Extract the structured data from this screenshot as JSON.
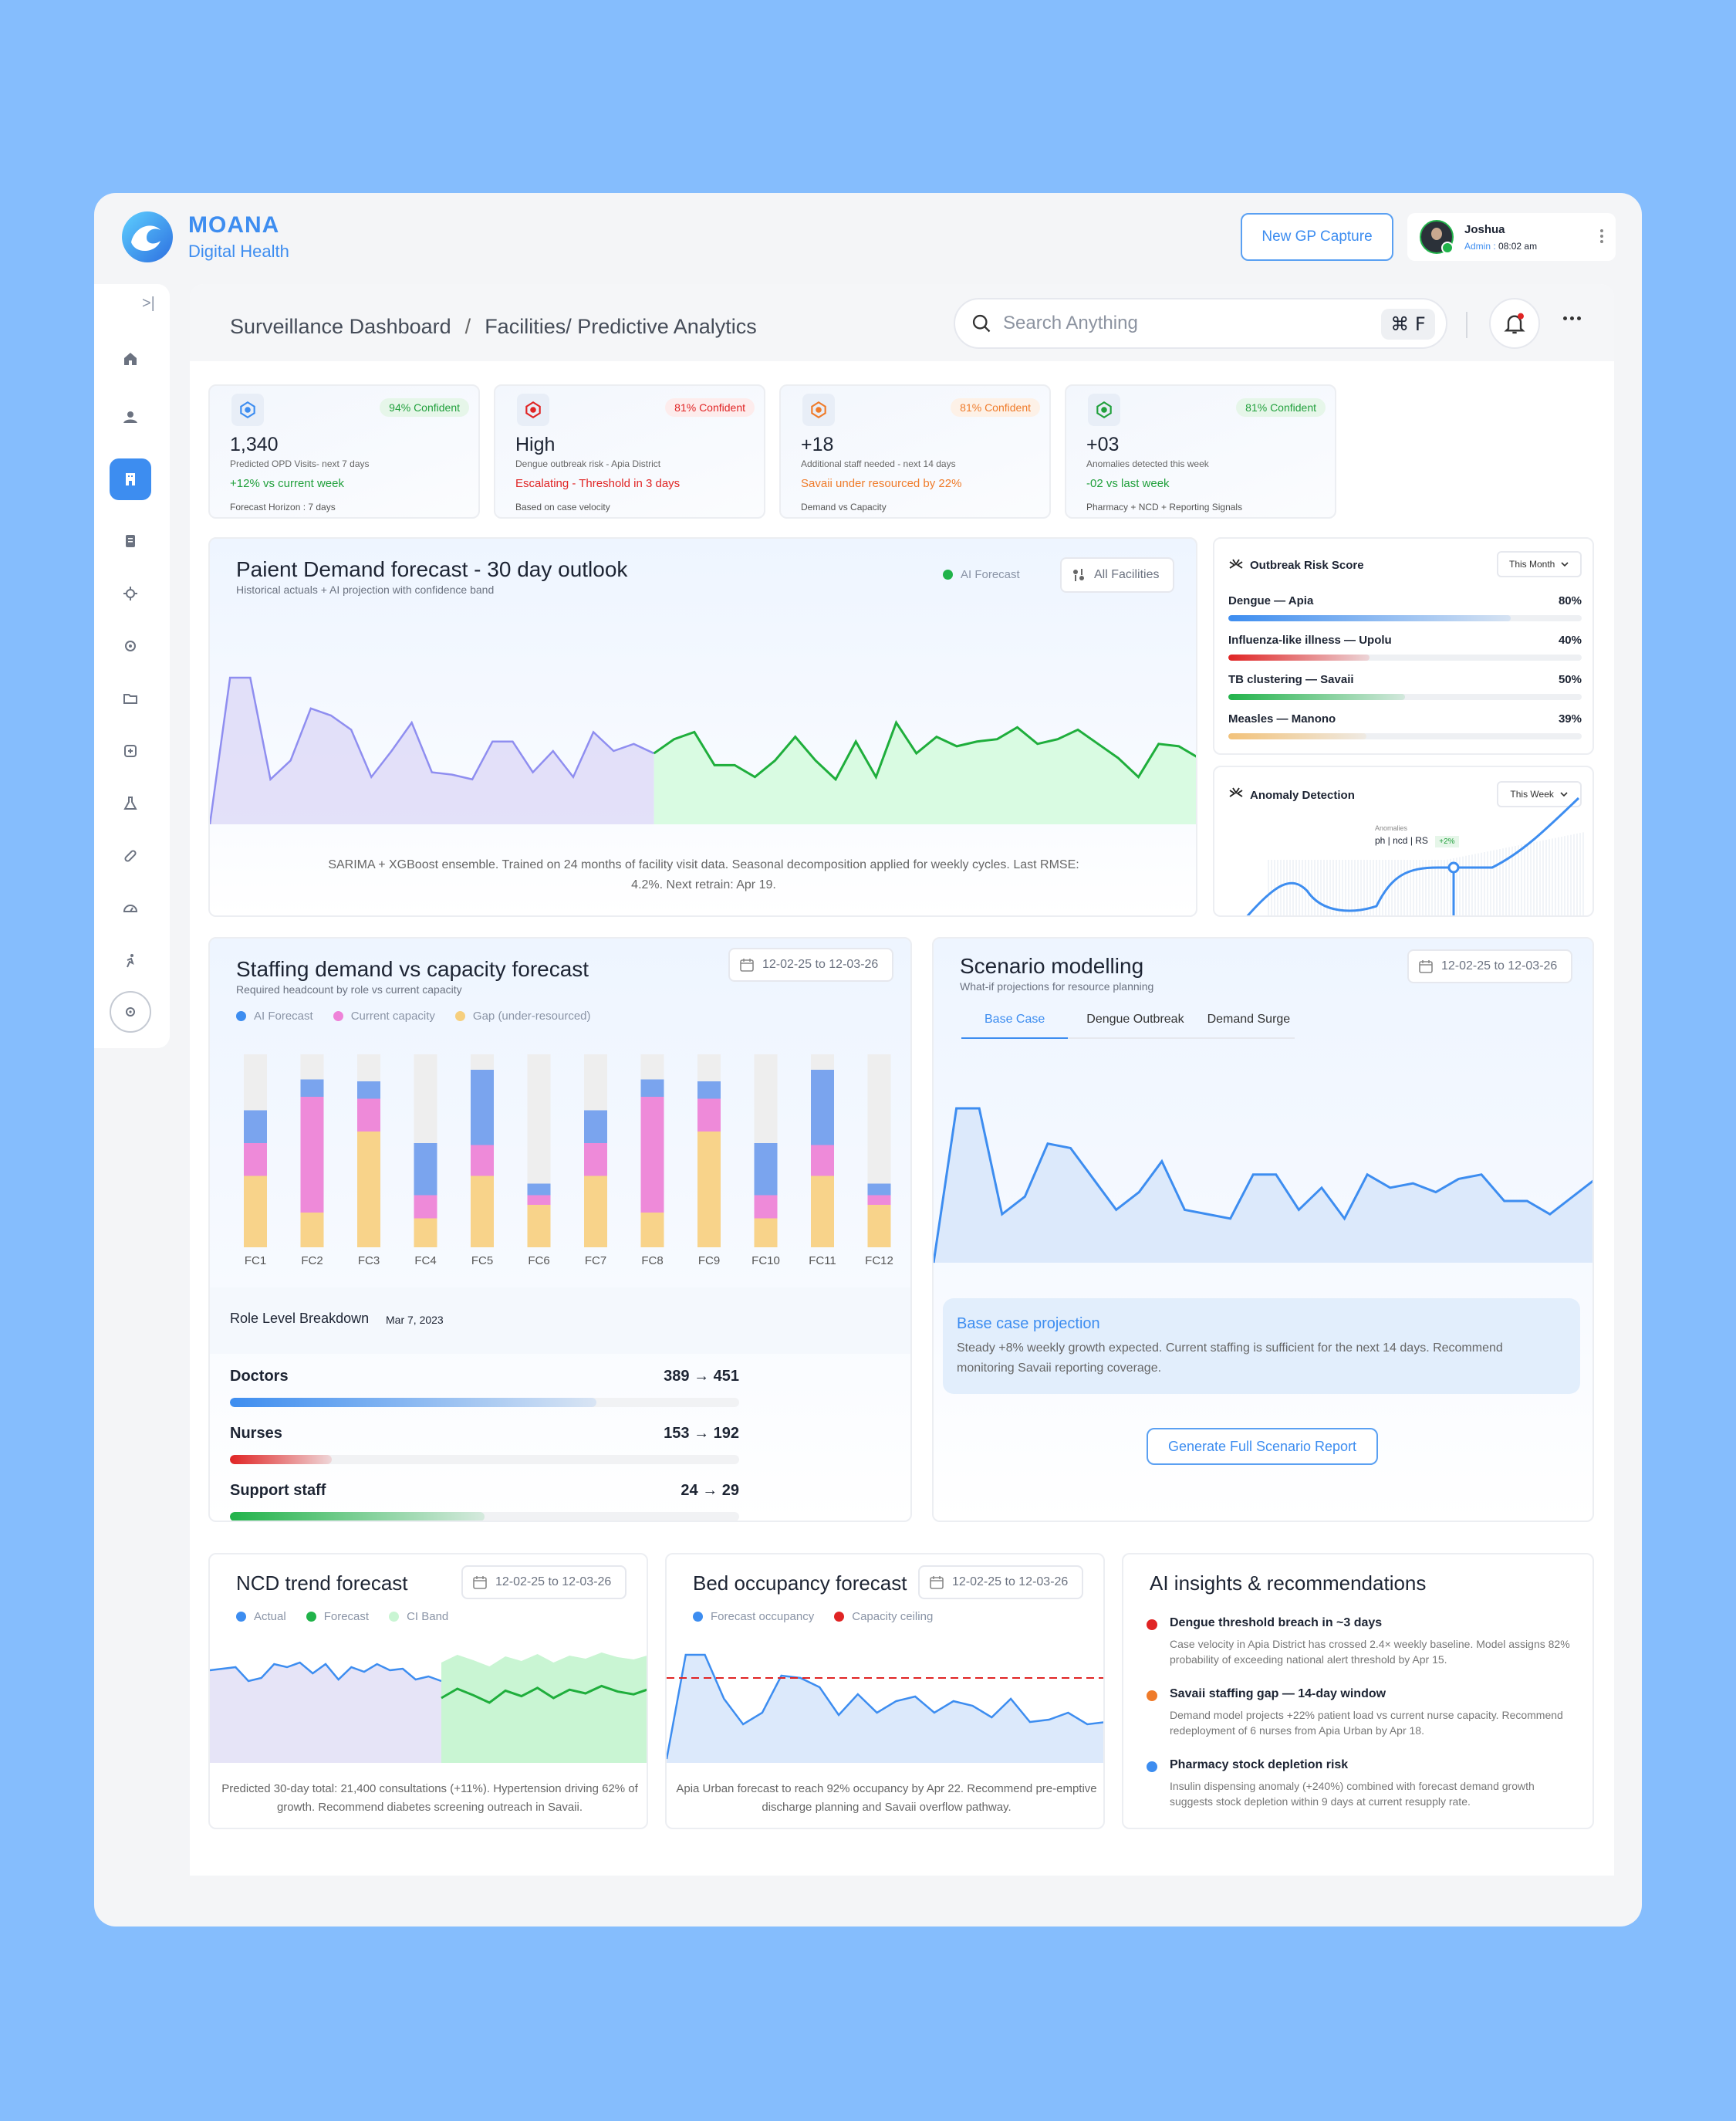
{
  "brand": {
    "name": "MOANA",
    "sub": "Digital Health"
  },
  "header": {
    "gp_button": "New GP Capture",
    "user_name": "Joshua",
    "user_role": "Admin",
    "user_time": "08:02 am"
  },
  "breadcrumb": {
    "root": "Surveillance Dashboard",
    "sep": "/",
    "current": "Facilities/ Predictive Analytics"
  },
  "search": {
    "placeholder": "Search Anything",
    "shortcut": "⌘ F"
  },
  "sidebar": {
    "icons": [
      "collapse-icon",
      "home-icon",
      "users-icon",
      "building-icon",
      "document-icon",
      "virus-icon",
      "settings-icon",
      "folder-icon",
      "medical-icon",
      "flask-icon",
      "pill-icon",
      "gauge-icon",
      "activity-icon",
      "gear-icon"
    ]
  },
  "kpis": [
    {
      "icon": "building-icon",
      "confidence": "94% Confident",
      "value": "1,340",
      "sub": "Predicted OPD Visits- next 7 days",
      "trend": "+12% vs current week",
      "foot": "Forecast Horizon : 7 days",
      "color": "#3d8df0",
      "trend_color": "#21a03c",
      "conf_bg": "#e6f6e9",
      "conf_color": "#21a03c"
    },
    {
      "icon": "building-icon",
      "confidence": "81% Confident",
      "value": "High",
      "sub": "Dengue outbreak risk - Apia District",
      "trend": "Escalating - Threshold in 3 days",
      "foot": "Based on case velocity",
      "color": "#e02424",
      "trend_color": "#e02424",
      "conf_bg": "#fdecec",
      "conf_color": "#e02424"
    },
    {
      "icon": "building-icon",
      "confidence": "81% Confident",
      "value": "+18",
      "sub": "Additional staff needed - next 14 days",
      "trend": "Savaii under resourced by 22%",
      "foot": "Demand vs Capacity",
      "color": "#ef7b2a",
      "trend_color": "#ef7b2a",
      "conf_bg": "#fdf1e7",
      "conf_color": "#ef7b2a"
    },
    {
      "icon": "building-icon",
      "confidence": "81% Confident",
      "value": "+03",
      "sub": "Anomalies detected this week",
      "trend": "-02 vs last week",
      "foot": "Pharmacy + NCD + Reporting Signals",
      "color": "#21a03c",
      "trend_color": "#21a03c",
      "conf_bg": "#e6f6e9",
      "conf_color": "#21a03c"
    }
  ],
  "demand": {
    "title": "Paient Demand forecast - 30 day outlook",
    "subtitle": "Historical actuals + AI projection with confidence band",
    "legend_ai": "AI Forecast",
    "filter": "All Facilities",
    "note": "SARIMA + XGBoost ensemble. Trained on 24 months of facility visit data. Seasonal decomposition applied for weekly cycles. Last RMSE: 4.2%. Next retrain: Apr 19."
  },
  "risk": {
    "title": "Outbreak Risk Score",
    "period": "This Month",
    "items": [
      {
        "label": "Dengue — Apia",
        "pct": "80%",
        "value": 80,
        "color": "#3d8df0"
      },
      {
        "label": "Influenza-like illness — Upolu",
        "pct": "40%",
        "value": 40,
        "color": "#e02424"
      },
      {
        "label": "TB clustering — Savaii",
        "pct": "50%",
        "value": 50,
        "color": "#21b34a"
      },
      {
        "label": "Measles — Manono",
        "pct": "39%",
        "value": 39,
        "color": "#f2c27a"
      }
    ]
  },
  "anomaly": {
    "title": "Anomaly Detection",
    "period": "This Week",
    "tip_label": "Anomalies",
    "tip_value": "ph | ncd | RS",
    "tip_badge": "+2%"
  },
  "staffing": {
    "title": "Staffing demand vs capacity forecast",
    "subtitle": "Required headcount by role vs current capacity",
    "date": "12-02-25 to 12-03-26",
    "breakdown_title": "Role Level Breakdown",
    "breakdown_date": "Mar 7, 2023",
    "roles": [
      {
        "name": "Doctors",
        "value": "389 → 451",
        "fill": 0.72,
        "color": "#3d8df0"
      },
      {
        "name": "Nurses",
        "value": "153 → 192",
        "fill": 0.2,
        "color": "#e02424"
      },
      {
        "name": "Support staff",
        "value": "24 → 29",
        "fill": 0.5,
        "color": "#21b34a"
      }
    ]
  },
  "scenario": {
    "title": "Scenario modelling",
    "subtitle": "What-if projections for resource planning",
    "date": "12-02-25 to 12-03-26",
    "tabs": [
      "Base Case",
      "Dengue Outbreak",
      "Demand Surge"
    ],
    "projection_title": "Base case projection",
    "projection_text": "Steady +8% weekly growth expected. Current staffing is sufficient for the next 14 days. Recommend monitoring Savaii reporting coverage.",
    "report_button": "Generate Full Scenario Report"
  },
  "ncd": {
    "title": "NCD trend forecast",
    "date": "12-02-25 to 12-03-26",
    "note": "Predicted 30-day total: 21,400 consultations (+11%). Hypertension driving 62% of growth. Recommend diabetes screening outreach in Savaii."
  },
  "bed": {
    "title": "Bed occupancy forecast",
    "date": "12-02-25 to 12-03-26",
    "note": "Apia Urban forecast to reach 92% occupancy by Apr 22. Recommend pre-emptive discharge planning and Savaii overflow pathway."
  },
  "insights": {
    "title": "AI insights & recommendations",
    "items": [
      {
        "title": "Dengue threshold breach in ~3 days",
        "text": "Case velocity in Apia District has crossed 2.4× weekly baseline. Model assigns 82% probability of exceeding national alert threshold by Apr 15.",
        "color": "#e02424"
      },
      {
        "title": "Savaii staffing gap — 14-day window",
        "text": "Demand model projects +22% patient load vs current nurse capacity. Recommend redeployment of 6 nurses from Apia Urban by Apr 18.",
        "color": "#ef7b2a"
      },
      {
        "title": "Pharmacy stock depletion risk",
        "text": "Insulin dispensing anomaly (+240%) combined with forecast demand growth suggests stock depletion within 9 days at current resupply rate.",
        "color": "#3d8df0"
      }
    ]
  },
  "chart_data": [
    {
      "type": "line",
      "name_ref": "demand",
      "series": [
        {
          "name": "",
          "values": [
            0,
            62,
            62,
            19,
            27,
            49,
            46,
            40,
            20,
            31,
            43,
            22,
            21,
            19,
            35,
            35,
            22,
            31,
            20,
            39,
            31,
            34,
            30,
            36,
            39,
            25,
            25,
            20,
            27,
            37,
            27,
            19,
            35,
            20,
            43,
            30,
            37,
            33,
            35,
            36,
            41,
            34,
            36,
            40,
            34,
            28,
            20,
            34,
            33,
            28
          ]
        },
        {
          "name": "AI Forecast",
          "values": []
        }
      ]
    },
    {
      "type": "bar",
      "name_ref": "staffing",
      "categories": [
        "FC1",
        "FC2",
        "FC3",
        "FC4",
        "FC5",
        "FC6",
        "FC7",
        "FC8",
        "FC9",
        "FC10",
        "FC11",
        "FC12"
      ],
      "series": [
        {
          "name": "AI Forecast",
          "values": [
            17,
            9,
            9,
            27,
            39,
            6,
            17,
            9,
            9,
            27,
            39,
            6
          ]
        },
        {
          "name": "Current capacity",
          "values": [
            17,
            60,
            17,
            12,
            16,
            5,
            17,
            60,
            17,
            12,
            16,
            5
          ]
        },
        {
          "name": "Gap (under-resourced)",
          "values": [
            37,
            18,
            60,
            15,
            37,
            22,
            37,
            18,
            60,
            15,
            37,
            22
          ]
        }
      ],
      "ylim": [
        0,
        100
      ]
    },
    {
      "type": "line",
      "name_ref": "scenario",
      "series": [
        {
          "name": "Base Case",
          "values": [
            0,
            70,
            70,
            22,
            30,
            54,
            52,
            38,
            24,
            32,
            46,
            24,
            22,
            20,
            40,
            40,
            24,
            34,
            20,
            40,
            34,
            36,
            32,
            38,
            40,
            28,
            28,
            22,
            30,
            38
          ]
        }
      ]
    },
    {
      "type": "line",
      "name_ref": "ncd",
      "series": [
        {
          "name": "Actual",
          "values": []
        },
        {
          "name": "Forecast",
          "values": []
        },
        {
          "name": "CI Band",
          "values": []
        }
      ]
    },
    {
      "type": "line",
      "name_ref": "bed",
      "series": [
        {
          "name": "Forecast occupancy",
          "values": []
        },
        {
          "name": "Capacity ceiling",
          "values": []
        }
      ]
    }
  ]
}
